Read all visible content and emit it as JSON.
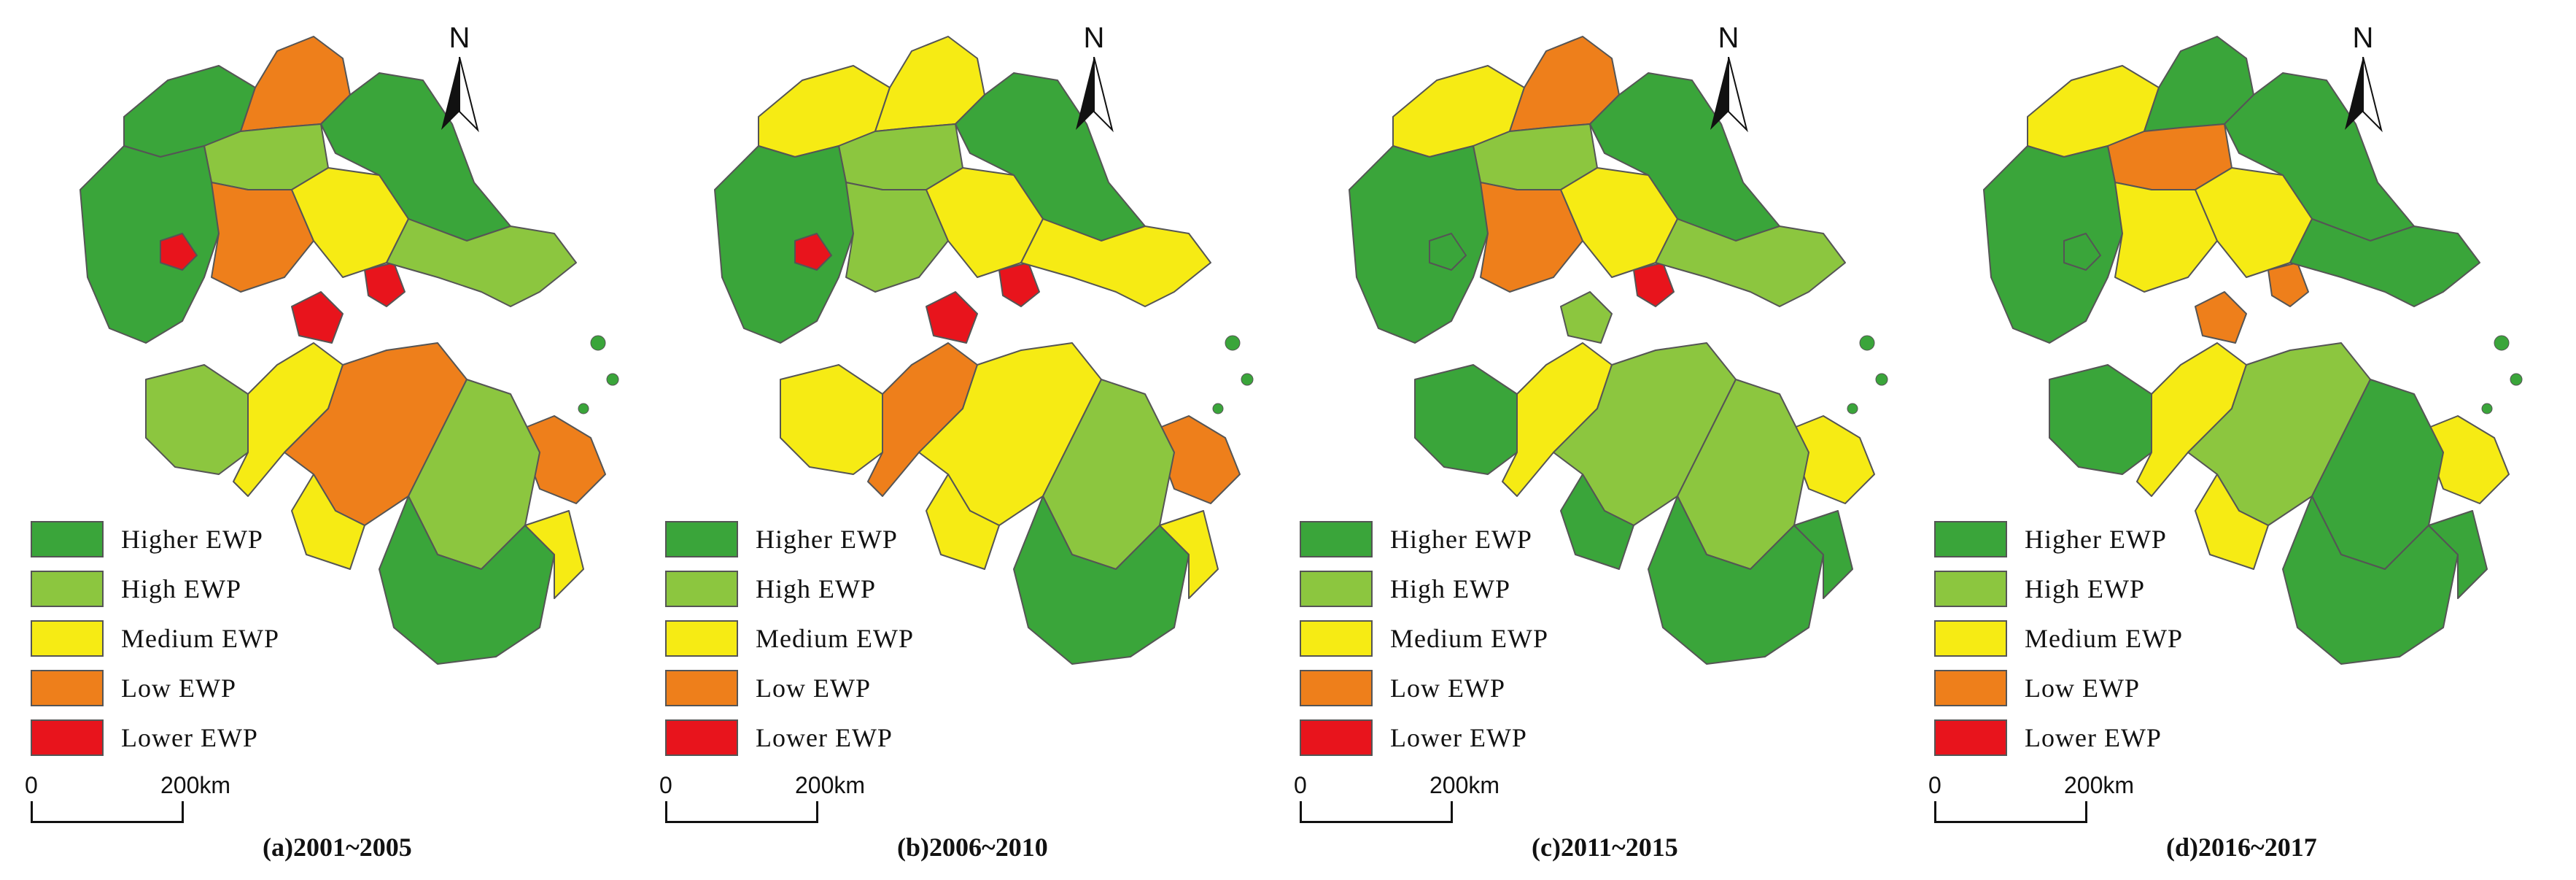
{
  "north_label": "N",
  "colors": {
    "higher": "#3aa53a",
    "high": "#8cc63f",
    "medium": "#f6eb14",
    "low": "#ee7f1b",
    "lower": "#e8141c",
    "border": "#555555"
  },
  "legend": [
    {
      "key": "higher",
      "label": "Higher EWP"
    },
    {
      "key": "high",
      "label": "High EWP"
    },
    {
      "key": "medium",
      "label": "Medium EWP"
    },
    {
      "key": "low",
      "label": "Low EWP"
    },
    {
      "key": "lower",
      "label": "Lower EWP"
    }
  ],
  "scale": {
    "zero": "0",
    "distance": "200",
    "unit": "km"
  },
  "panels": [
    {
      "caption": "(a)2001~2005",
      "regions": {
        "nw": "higher",
        "north": "low",
        "north2": "high",
        "ne": "higher",
        "west": "higher",
        "city1": "lower",
        "center1": "low",
        "center2": "medium",
        "city2": "lower",
        "city3": "lower",
        "coastE": "high",
        "sw": "high",
        "swRib": "medium",
        "southMid": "low",
        "eastPen": "low",
        "south1": "high",
        "south2": "higher",
        "southW": "medium",
        "coastS": "medium"
      }
    },
    {
      "caption": "(b)2006~2010",
      "regions": {
        "nw": "medium",
        "north": "medium",
        "north2": "high",
        "ne": "higher",
        "west": "higher",
        "city1": "lower",
        "center1": "high",
        "center2": "medium",
        "city2": "lower",
        "city3": "lower",
        "coastE": "medium",
        "sw": "medium",
        "swRib": "low",
        "southMid": "medium",
        "eastPen": "low",
        "south1": "high",
        "south2": "higher",
        "southW": "medium",
        "coastS": "medium"
      }
    },
    {
      "caption": "(c)2011~2015",
      "regions": {
        "nw": "medium",
        "north": "low",
        "north2": "high",
        "ne": "higher",
        "west": "higher",
        "city1": "higher",
        "center1": "low",
        "center2": "medium",
        "city2": "high",
        "city3": "lower",
        "coastE": "high",
        "sw": "higher",
        "swRib": "medium",
        "southMid": "high",
        "eastPen": "medium",
        "south1": "high",
        "south2": "higher",
        "southW": "higher",
        "coastS": "higher"
      }
    },
    {
      "caption": "(d)2016~2017",
      "regions": {
        "nw": "medium",
        "north": "higher",
        "north2": "low",
        "ne": "higher",
        "west": "higher",
        "city1": "higher",
        "center1": "medium",
        "center2": "medium",
        "city2": "low",
        "city3": "low",
        "coastE": "higher",
        "sw": "higher",
        "swRib": "medium",
        "southMid": "high",
        "eastPen": "medium",
        "south1": "higher",
        "south2": "higher",
        "southW": "medium",
        "coastS": "higher"
      }
    }
  ]
}
